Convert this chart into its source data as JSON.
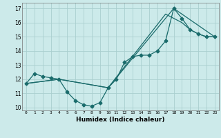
{
  "xlabel": "Humidex (Indice chaleur)",
  "bg_color": "#cceaea",
  "grid_color": "#aacfcf",
  "line_color": "#1a6b6b",
  "xlim": [
    -0.5,
    23.5
  ],
  "ylim": [
    9.8,
    17.4
  ],
  "xticks": [
    0,
    1,
    2,
    3,
    4,
    5,
    6,
    7,
    8,
    9,
    10,
    11,
    12,
    13,
    14,
    15,
    16,
    17,
    18,
    19,
    20,
    21,
    22,
    23
  ],
  "yticks": [
    10,
    11,
    12,
    13,
    14,
    15,
    16,
    17
  ],
  "line1_x": [
    0,
    1,
    2,
    3,
    4,
    5,
    6,
    7,
    8,
    9,
    10,
    11,
    12,
    13,
    14,
    15,
    16,
    17,
    18,
    19,
    20,
    21,
    22,
    23
  ],
  "line1_y": [
    11.7,
    12.4,
    12.2,
    12.1,
    12.0,
    11.1,
    10.5,
    10.2,
    10.1,
    10.35,
    11.4,
    12.0,
    13.2,
    13.6,
    13.7,
    13.7,
    14.0,
    14.7,
    17.0,
    16.3,
    15.5,
    15.2,
    15.0,
    15.0
  ],
  "line2_x": [
    0,
    4,
    10,
    17,
    18,
    19,
    20,
    21,
    22,
    23
  ],
  "line2_y": [
    11.7,
    12.0,
    11.4,
    16.6,
    16.3,
    16.0,
    15.5,
    15.2,
    15.0,
    15.0
  ],
  "line3_x": [
    0,
    4,
    10,
    18,
    23
  ],
  "line3_y": [
    11.7,
    12.0,
    11.4,
    17.0,
    15.0
  ]
}
